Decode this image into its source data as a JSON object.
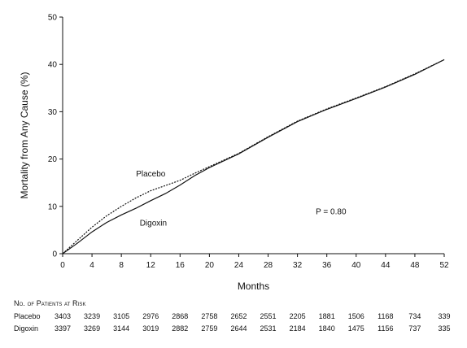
{
  "chart_data": {
    "type": "line",
    "title": "",
    "xlabel": "Months",
    "ylabel": "Mortality from Any Cause (%)",
    "xlim": [
      0,
      52
    ],
    "ylim": [
      0,
      50
    ],
    "x_ticks": [
      0,
      4,
      8,
      12,
      16,
      20,
      24,
      28,
      32,
      36,
      40,
      44,
      48,
      52
    ],
    "y_ticks": [
      0,
      10,
      20,
      30,
      40,
      50
    ],
    "grid": false,
    "legend": "none",
    "series": [
      {
        "name": "Placebo",
        "color": "#111111",
        "style": "dotted",
        "points": [
          [
            0,
            0
          ],
          [
            2,
            2.8
          ],
          [
            4,
            5.6
          ],
          [
            6,
            8.0
          ],
          [
            8,
            10.0
          ],
          [
            10,
            11.8
          ],
          [
            12,
            13.3
          ],
          [
            14,
            14.4
          ],
          [
            16,
            15.5
          ],
          [
            18,
            17.0
          ],
          [
            20,
            18.4
          ],
          [
            24,
            21.2
          ],
          [
            28,
            24.7
          ],
          [
            32,
            28.0
          ],
          [
            36,
            30.6
          ],
          [
            40,
            32.9
          ],
          [
            44,
            35.3
          ],
          [
            48,
            38.0
          ],
          [
            52,
            41.0
          ]
        ]
      },
      {
        "name": "Digoxin",
        "color": "#111111",
        "style": "solid",
        "points": [
          [
            0,
            0
          ],
          [
            2,
            2.2
          ],
          [
            4,
            4.6
          ],
          [
            6,
            6.6
          ],
          [
            8,
            8.2
          ],
          [
            10,
            9.6
          ],
          [
            12,
            11.2
          ],
          [
            14,
            12.7
          ],
          [
            16,
            14.5
          ],
          [
            18,
            16.5
          ],
          [
            20,
            18.2
          ],
          [
            24,
            21.1
          ],
          [
            28,
            24.6
          ],
          [
            32,
            27.9
          ],
          [
            36,
            30.5
          ],
          [
            40,
            32.8
          ],
          [
            44,
            35.2
          ],
          [
            48,
            37.9
          ],
          [
            52,
            41.0
          ]
        ]
      }
    ],
    "annotations": [
      {
        "text": "Placebo",
        "x": 10,
        "y": 16.3
      },
      {
        "text": "Digoxin",
        "x": 10.5,
        "y": 5.9
      },
      {
        "text": "P = 0.80",
        "x": 34.5,
        "y": 8.3
      }
    ]
  },
  "risk_table": {
    "title": "No. of Patients at Risk",
    "rows": [
      {
        "label": "Placebo",
        "values": [
          "3403",
          "3239",
          "3105",
          "2976",
          "2868",
          "2758",
          "2652",
          "2551",
          "2205",
          "1881",
          "1506",
          "1168",
          "734",
          "339"
        ]
      },
      {
        "label": "Digoxin",
        "values": [
          "3397",
          "3269",
          "3144",
          "3019",
          "2882",
          "2759",
          "2644",
          "2531",
          "2184",
          "1840",
          "1475",
          "1156",
          "737",
          "335"
        ]
      }
    ]
  }
}
